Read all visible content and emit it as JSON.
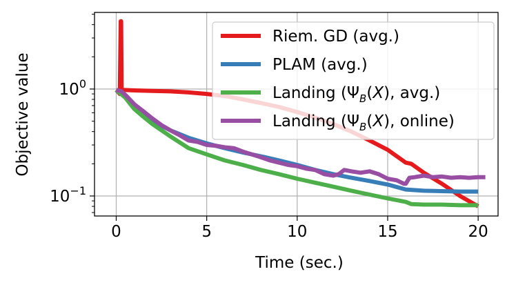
{
  "chart_data": {
    "type": "line",
    "title": "",
    "xlabel": "Time (sec.)",
    "ylabel": "Objective value",
    "xlim": [
      -1.2,
      21.1
    ],
    "ylim": [
      0.065,
      5.2
    ],
    "yscale": "log",
    "grid": true,
    "legend_position": "top-right",
    "x_ticks": [
      0,
      5,
      10,
      15,
      20
    ],
    "x_tick_labels": [
      "0",
      "5",
      "10",
      "15",
      "20"
    ],
    "y_ticks": [
      {
        "value": 1,
        "base": "10",
        "exp": "0"
      },
      {
        "value": 0.1,
        "base": "10",
        "exp": "−1"
      }
    ],
    "series": [
      {
        "name": "Riem. GD (avg.)",
        "legend_parts": {
          "text": "Riem. GD (avg.)"
        },
        "color": "#e41a1c",
        "x": [
          0.0,
          0.2,
          0.25,
          0.27,
          0.3,
          0.32,
          1.0,
          2.0,
          3.0,
          4.0,
          5.0,
          6.0,
          7.0,
          8.0,
          9.0,
          10.0,
          11.0,
          12.0,
          13.0,
          14.0,
          15.0,
          16.0,
          16.3,
          17.0,
          18.0,
          19.0,
          20.0
        ],
        "y": [
          0.98,
          0.9,
          4.3,
          4.3,
          1.0,
          0.98,
          0.97,
          0.96,
          0.95,
          0.93,
          0.9,
          0.86,
          0.8,
          0.74,
          0.68,
          0.61,
          0.54,
          0.47,
          0.4,
          0.33,
          0.27,
          0.205,
          0.2,
          0.165,
          0.13,
          0.1,
          0.08
        ]
      },
      {
        "name": "PLAM (avg.)",
        "legend_parts": {
          "text": "PLAM (avg.)"
        },
        "color": "#377eb8",
        "x": [
          0.0,
          0.5,
          1.0,
          1.5,
          2.0,
          3.0,
          4.0,
          5.0,
          6.0,
          7.0,
          8.0,
          9.0,
          10.0,
          11.0,
          12.0,
          13.0,
          14.0,
          15.0,
          16.0,
          17.0,
          18.0,
          19.0,
          20.0
        ],
        "y": [
          0.97,
          0.85,
          0.68,
          0.58,
          0.5,
          0.41,
          0.35,
          0.31,
          0.28,
          0.255,
          0.235,
          0.215,
          0.195,
          0.175,
          0.16,
          0.148,
          0.138,
          0.128,
          0.115,
          0.112,
          0.111,
          0.11,
          0.11
        ]
      },
      {
        "name": "Landing (ΨB(X), avg.)",
        "legend_parts": {
          "pre": "Landing (Ψ",
          "sub": "B",
          "open": "(",
          "var": "X",
          "post": "), avg.)"
        },
        "color": "#4daf4a",
        "x": [
          0.0,
          0.5,
          1.0,
          1.5,
          2.0,
          3.0,
          4.0,
          5.0,
          6.0,
          7.0,
          8.0,
          9.0,
          10.0,
          11.0,
          12.0,
          13.0,
          14.0,
          15.0,
          16.0,
          16.3,
          17.0,
          18.0,
          19.0,
          20.0
        ],
        "y": [
          0.98,
          0.83,
          0.65,
          0.55,
          0.47,
          0.36,
          0.28,
          0.245,
          0.215,
          0.195,
          0.175,
          0.16,
          0.145,
          0.133,
          0.122,
          0.112,
          0.103,
          0.095,
          0.088,
          0.084,
          0.083,
          0.083,
          0.082,
          0.082
        ]
      },
      {
        "name": "Landing (ΨB(X), online)",
        "legend_parts": {
          "pre": "Landing (Ψ",
          "sub": "B",
          "open": "(",
          "var": "X",
          "post": "), online)"
        },
        "color": "#984ea3",
        "x": [
          0.0,
          0.3,
          0.6,
          1.0,
          1.5,
          2.0,
          2.5,
          3.0,
          3.5,
          4.0,
          4.5,
          5.0,
          5.5,
          6.0,
          6.5,
          7.0,
          7.5,
          8.0,
          8.5,
          9.0,
          9.5,
          10.0,
          10.5,
          11.0,
          11.5,
          12.0,
          12.3,
          12.6,
          13.0,
          13.5,
          14.0,
          14.5,
          15.0,
          15.5,
          15.9,
          16.0,
          16.2,
          16.5,
          17.0,
          17.5,
          18.0,
          18.5,
          19.0,
          19.5,
          20.0,
          20.4
        ],
        "y": [
          0.98,
          0.95,
          0.85,
          0.72,
          0.62,
          0.53,
          0.46,
          0.41,
          0.37,
          0.33,
          0.32,
          0.3,
          0.295,
          0.285,
          0.28,
          0.26,
          0.245,
          0.23,
          0.215,
          0.205,
          0.195,
          0.19,
          0.18,
          0.175,
          0.16,
          0.155,
          0.16,
          0.175,
          0.17,
          0.165,
          0.17,
          0.16,
          0.145,
          0.14,
          0.13,
          0.13,
          0.148,
          0.15,
          0.155,
          0.15,
          0.152,
          0.148,
          0.15,
          0.148,
          0.15,
          0.15
        ]
      }
    ]
  }
}
